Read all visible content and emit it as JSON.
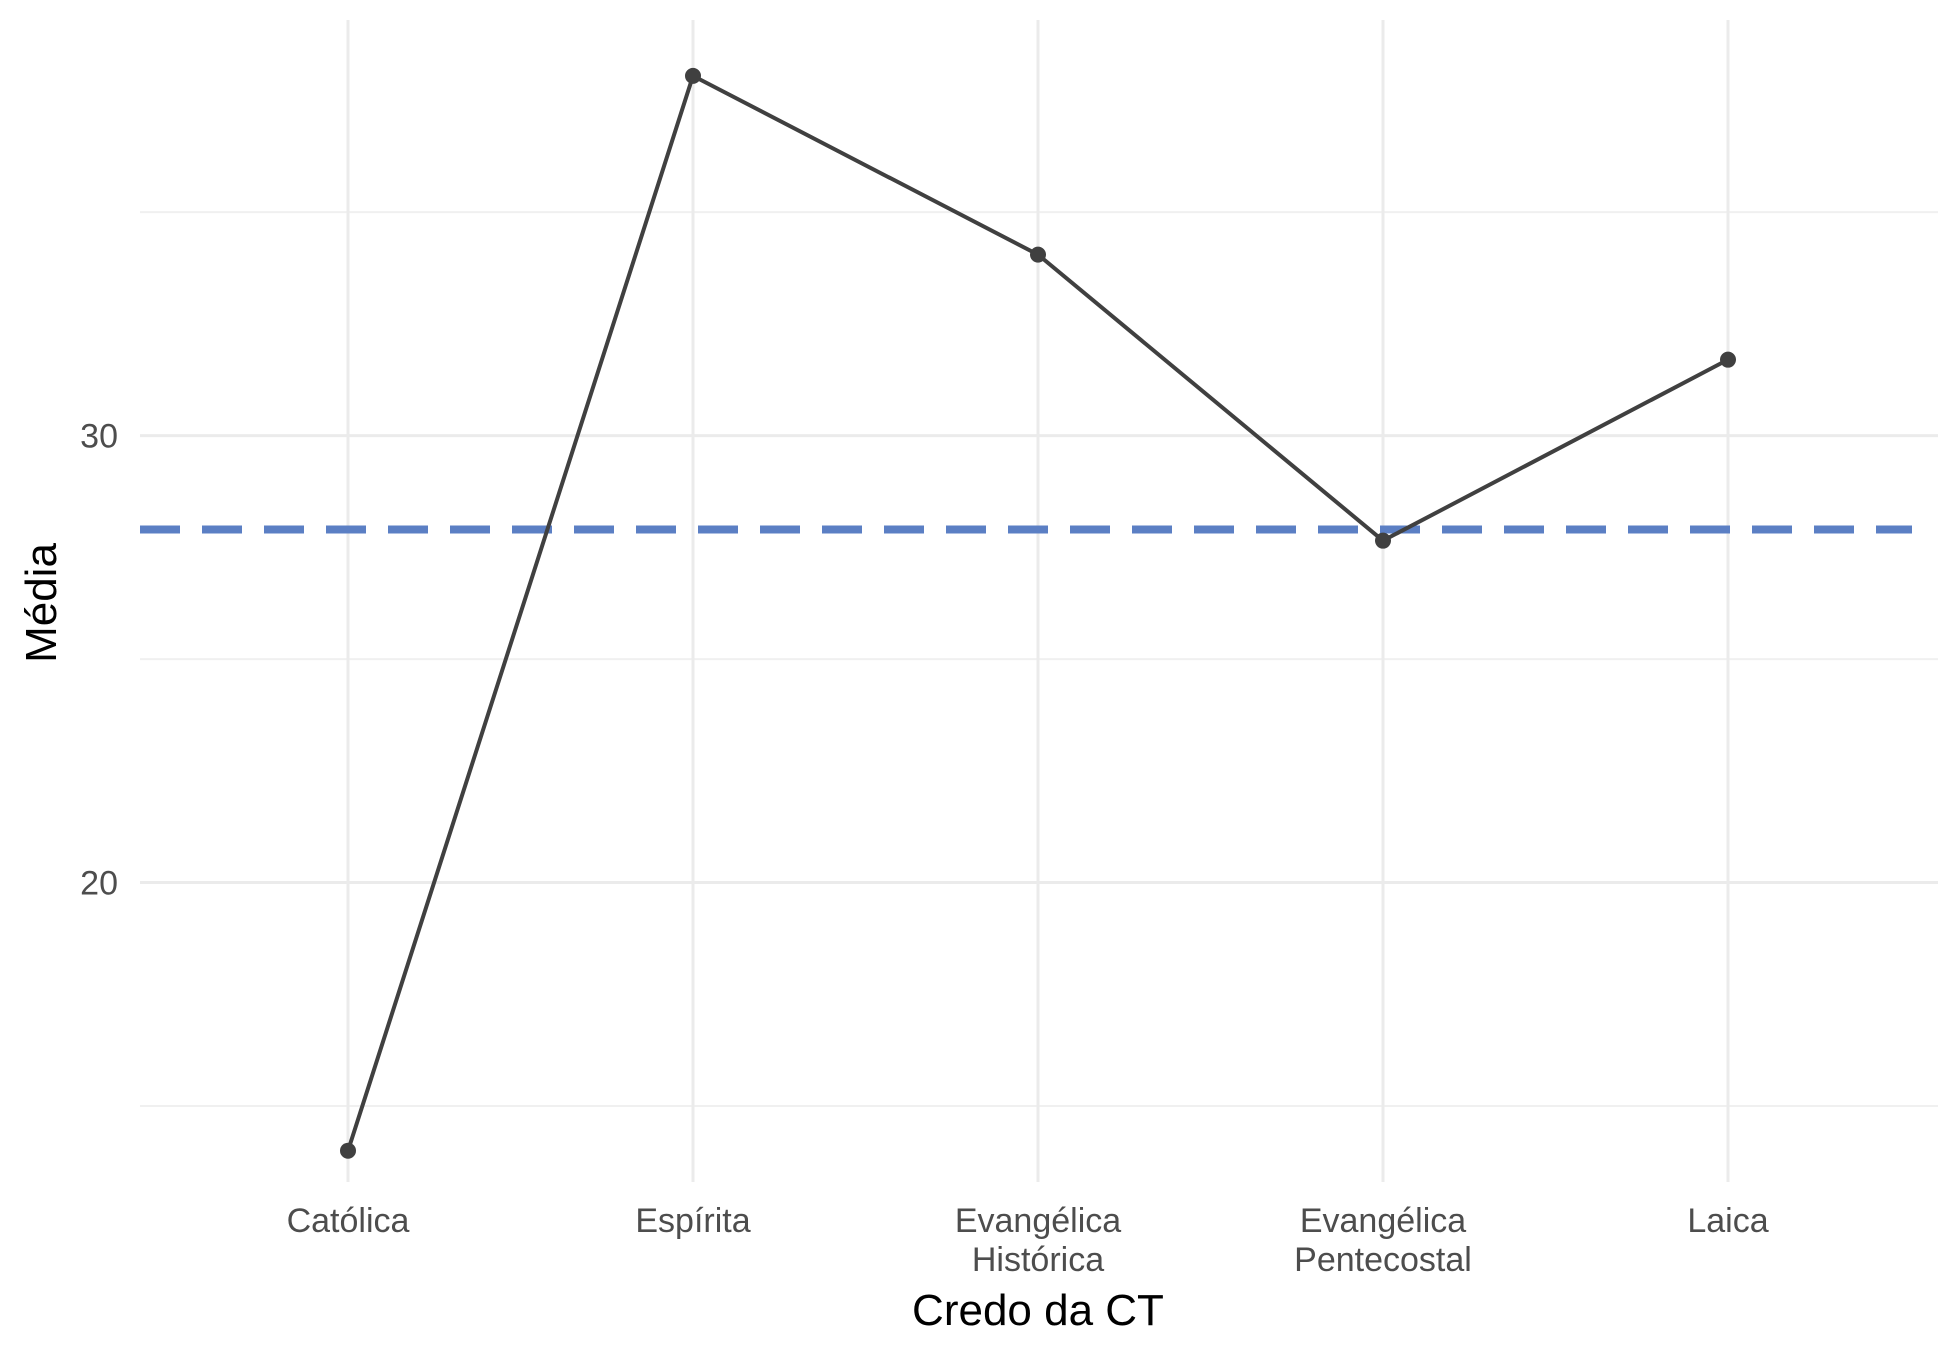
{
  "chart_data": {
    "type": "line",
    "xlabel": "Credo da CT",
    "ylabel": "Média",
    "categories": [
      [
        "Católica"
      ],
      [
        "Espírita"
      ],
      [
        "Evangélica",
        "Histórica"
      ],
      [
        "Evangélica",
        "Pentecostal"
      ],
      [
        "Laica"
      ]
    ],
    "series": [
      {
        "values": [
          14.0,
          38.05,
          34.05,
          27.65,
          31.7
        ],
        "color": "#404040"
      }
    ],
    "reference_line": {
      "value": 27.9,
      "color": "#5b7fc4",
      "style": "dashed"
    },
    "yticks": [
      20,
      30
    ],
    "ylim": [
      13.3,
      39.3
    ],
    "grid": true,
    "legend": "none"
  }
}
